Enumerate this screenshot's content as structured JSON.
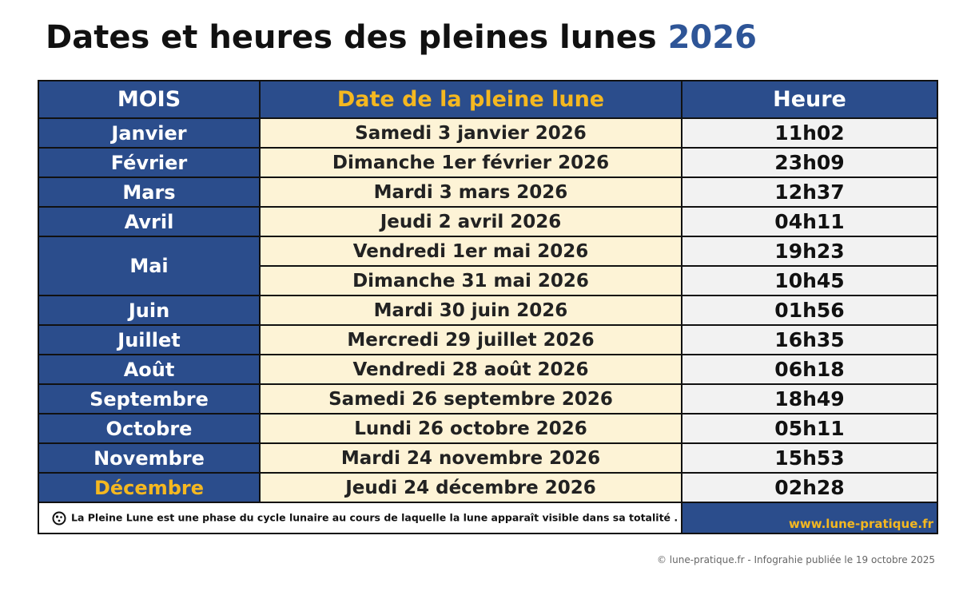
{
  "title": {
    "text": "Dates et heures des pleines lunes",
    "year": "2026"
  },
  "table": {
    "headers": [
      "MOIS",
      "Date de la pleine lune",
      "Heure"
    ],
    "rows": [
      {
        "month": "Janvier",
        "entries": [
          {
            "date": "Samedi 3 janvier 2026",
            "time": "11h02"
          }
        ]
      },
      {
        "month": "Février",
        "entries": [
          {
            "date": "Dimanche 1er février 2026",
            "time": "23h09"
          }
        ]
      },
      {
        "month": "Mars",
        "entries": [
          {
            "date": "Mardi 3 mars 2026",
            "time": "12h37"
          }
        ]
      },
      {
        "month": "Avril",
        "entries": [
          {
            "date": "Jeudi 2 avril 2026",
            "time": "04h11"
          }
        ]
      },
      {
        "month": "Mai",
        "entries": [
          {
            "date": "Vendredi 1er mai 2026",
            "time": "19h23"
          },
          {
            "date": "Dimanche 31 mai 2026",
            "time": "10h45"
          }
        ]
      },
      {
        "month": "Juin",
        "entries": [
          {
            "date": "Mardi 30 juin 2026",
            "time": "01h56"
          }
        ]
      },
      {
        "month": "Juillet",
        "entries": [
          {
            "date": "Mercredi 29 juillet 2026",
            "time": "16h35"
          }
        ]
      },
      {
        "month": "Août",
        "entries": [
          {
            "date": "Vendredi 28 août 2026",
            "time": "06h18"
          }
        ]
      },
      {
        "month": "Septembre",
        "entries": [
          {
            "date": "Samedi 26 septembre 2026",
            "time": "18h49"
          }
        ]
      },
      {
        "month": "Octobre",
        "entries": [
          {
            "date": "Lundi 26 octobre 2026",
            "time": "05h11"
          }
        ]
      },
      {
        "month": "Novembre",
        "entries": [
          {
            "date": "Mardi 24 novembre 2026",
            "time": "15h53"
          }
        ]
      },
      {
        "month": "Décembre",
        "entries": [
          {
            "date": "Jeudi 24 décembre 2026",
            "time": "02h28"
          }
        ]
      }
    ]
  },
  "footer": {
    "note": "La Pleine Lune est une phase du cycle lunaire au cours de laquelle la lune apparaît visible dans sa totalité .",
    "website": "www.lune-pratique.fr",
    "copyright": "© lune-pratique.fr - Infograhie publiée le 19 octobre 2025"
  }
}
